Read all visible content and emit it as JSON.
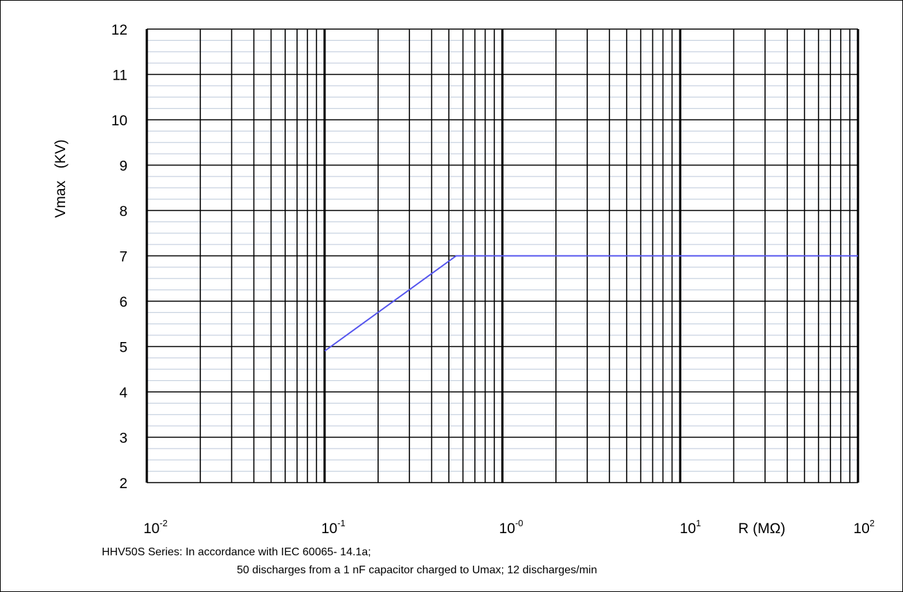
{
  "chart_data": {
    "type": "line",
    "title": "",
    "ylabel": "Vmax   (KV)",
    "xlabel": "R (MΩ)",
    "xscale": "log",
    "xlim": [
      0.01,
      100
    ],
    "ylim": [
      2,
      12
    ],
    "grid": true,
    "yticks": [
      "2",
      "3",
      "4",
      "5",
      "6",
      "7",
      "8",
      "9",
      "10",
      "11",
      "12"
    ],
    "xticks": [
      {
        "base": "10",
        "exp": "-2"
      },
      {
        "base": "10",
        "exp": "-1"
      },
      {
        "base": "10",
        "exp": "-0"
      },
      {
        "base": "10",
        "exp": "1"
      },
      {
        "base": "10",
        "exp": "2"
      }
    ],
    "series": [
      {
        "color": "#5555ee",
        "x": [
          0.1,
          0.55,
          100
        ],
        "y": [
          4.9,
          7.0,
          7.0
        ]
      }
    ]
  },
  "caption": {
    "line1": "HHV50S Series: In accordance with IEC 60065- 14.1a;",
    "line2": "50 discharges from a 1 nF capacitor charged to Umax; 12 discharges/min"
  },
  "colors": {
    "major_grid": "#000000",
    "minor_grid": "#c8d2e0",
    "series": "#5555ee"
  }
}
